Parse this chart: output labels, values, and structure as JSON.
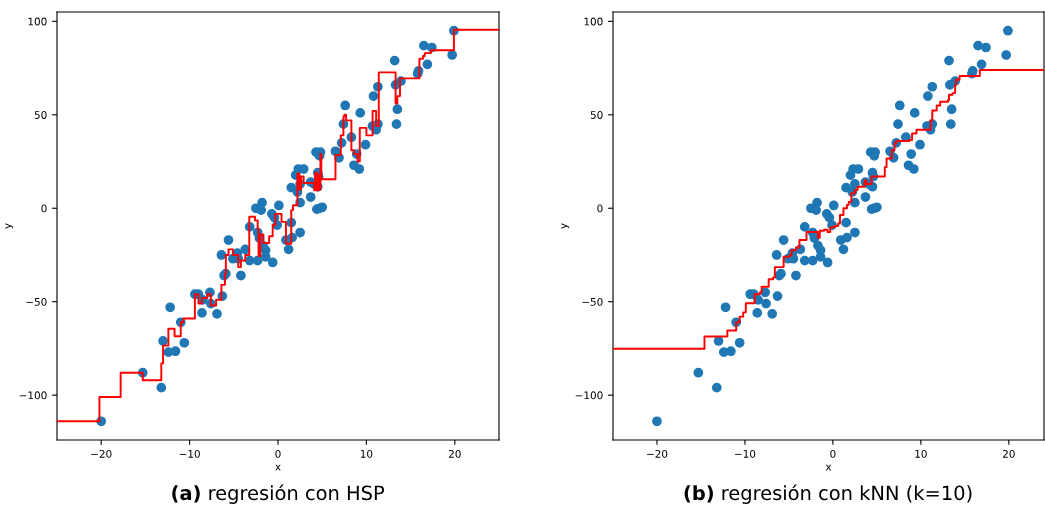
{
  "chart_data": [
    {
      "type": "scatter",
      "title": "(a) regresión con HSP",
      "xlabel": "x",
      "ylabel": "y",
      "xlim": [
        -25,
        25
      ],
      "ylim": [
        -124,
        105
      ],
      "xticks": [
        -20,
        -10,
        0,
        10,
        20
      ],
      "yticks": [
        -100,
        -50,
        0,
        50,
        100
      ],
      "series": [
        {
          "marker": "circle",
          "color": "#1f77b4",
          "x": [
            -20.0,
            -15.3,
            -13.2,
            -13.0,
            -12.2,
            -12.4,
            -11.6,
            -11.0,
            -10.6,
            -9.4,
            -9.0,
            -8.6,
            -8.5,
            -7.7,
            -7.6,
            -6.9,
            -6.3,
            -6.4,
            -6.1,
            -5.9,
            -5.6,
            -5.1,
            -4.6,
            -4.5,
            -4.2,
            -3.7,
            -3.2,
            -3.2,
            -2.5,
            -1.8,
            -1.9,
            -2.3,
            -2.1,
            -2.3,
            -1.7,
            -1.4,
            -1.4,
            -0.6,
            -0.7,
            -0.4,
            -0.1,
            0.1,
            0.9,
            1.2,
            1.5,
            1.6,
            2.5,
            1.5,
            2.0,
            2.3,
            2.9,
            2.5,
            2.2,
            2.5,
            3.7,
            3.7,
            4.3,
            4.8,
            4.7,
            4.5,
            4.6,
            4.1,
            4.5,
            4.4,
            4.7,
            5.0,
            6.5,
            6.9,
            7.2,
            7.4,
            7.6,
            8.3,
            8.9,
            8.6,
            9.2,
            9.3,
            9.9,
            10.7,
            11.1,
            11.3,
            10.8,
            11.3,
            13.2,
            13.3,
            13.5,
            13.4,
            13.9,
            15.8,
            15.9,
            16.9,
            16.5,
            17.4,
            19.7,
            19.9
          ],
          "values": [
            -114,
            -88,
            -96,
            -71,
            -53,
            -77,
            -76.5,
            -61,
            -72,
            -46,
            -46,
            -56,
            -49,
            -45,
            -51,
            -56.5,
            -47,
            -25,
            -36,
            -35,
            -17,
            -27,
            -24,
            -27,
            -36,
            -22,
            -28,
            -10,
            0,
            3,
            -1,
            -13,
            -16,
            -28,
            -20,
            -22.5,
            -26,
            -29,
            -3,
            -5,
            -9,
            1.5,
            -17,
            -22,
            -7.7,
            -15.7,
            -13,
            11,
            17.7,
            21,
            21,
            13,
            8.7,
            3,
            14,
            6,
            30,
            30,
            28,
            19,
            17,
            13,
            11.5,
            -0.5,
            0,
            0.5,
            30.5,
            27,
            35,
            45,
            55,
            38,
            29,
            23,
            21,
            51,
            34,
            44,
            42,
            45,
            60,
            65,
            79,
            66,
            53,
            45,
            68,
            72,
            73.5,
            77,
            87,
            86,
            82,
            95
          ]
        },
        {
          "type": "step",
          "color": "#ff0000",
          "x": [
            -25,
            -20.2,
            -17.8,
            -15.3,
            -13.2,
            -13.0,
            -12.4,
            -11.7,
            -11.0,
            -10.7,
            -9.4,
            -9.0,
            -8.6,
            -8.0,
            -7.6,
            -7.0,
            -6.4,
            -6.0,
            -5.9,
            -5.6,
            -5.1,
            -4.5,
            -4.2,
            -3.7,
            -3.25,
            -2.6,
            -2.3,
            -2.2,
            -2.0,
            -1.65,
            -1.0,
            -0.6,
            -0.3,
            0.4,
            0.9,
            1.5,
            1.7,
            2.2,
            2.4,
            2.6,
            2.9,
            4.1,
            4.2,
            4.4,
            4.6,
            4.7,
            4.8,
            4.9,
            6.5,
            7.1,
            7.4,
            7.5,
            7.7,
            8.3,
            8.6,
            9.0,
            9.25,
            10.0,
            10.7,
            11.1,
            11.4,
            13.3,
            13.5,
            13.8,
            16.0,
            16.4,
            16.6,
            17.3,
            19.9,
            25
          ],
          "values": [
            -114,
            -101,
            -88,
            -92,
            -83,
            -73.5,
            -64.5,
            -68.5,
            -61,
            -59,
            -46,
            -51,
            -48,
            -46,
            -52,
            -49,
            -41,
            -35,
            -25,
            -22,
            -25,
            -31.5,
            -28,
            -25,
            -4.6,
            -6.5,
            -11,
            -25.5,
            -14,
            -18.6,
            -15,
            -9,
            -3,
            -7.3,
            -19,
            -1,
            1.6,
            18.6,
            10,
            17,
            13.5,
            9.6,
            19,
            9.6,
            18,
            10,
            29,
            15.5,
            28.5,
            39,
            49,
            50,
            47,
            31,
            29,
            25,
            43,
            39,
            52,
            44,
            72.7,
            56,
            60,
            69.5,
            80,
            81.5,
            83,
            84.5,
            95.5,
            95.5
          ]
        }
      ]
    },
    {
      "type": "scatter",
      "title": "(b) regresión con kNN (k=10)",
      "xlabel": "x",
      "ylabel": "y",
      "xlim": [
        -25,
        24
      ],
      "ylim": [
        -124,
        105
      ],
      "xticks": [
        -20,
        -10,
        0,
        10,
        20
      ],
      "yticks": [
        -100,
        -50,
        0,
        50,
        100
      ],
      "series": [
        {
          "marker": "circle",
          "color": "#1f77b4",
          "x": [
            -20.0,
            -15.3,
            -13.2,
            -13.0,
            -12.2,
            -12.4,
            -11.6,
            -11.0,
            -10.6,
            -9.4,
            -9.0,
            -8.6,
            -8.5,
            -7.7,
            -7.6,
            -6.9,
            -6.3,
            -6.4,
            -6.1,
            -5.9,
            -5.6,
            -5.1,
            -4.6,
            -4.5,
            -4.2,
            -3.7,
            -3.2,
            -3.2,
            -2.5,
            -1.8,
            -1.9,
            -2.3,
            -2.1,
            -2.3,
            -1.7,
            -1.4,
            -1.4,
            -0.6,
            -0.7,
            -0.4,
            -0.1,
            0.1,
            0.9,
            1.2,
            1.5,
            1.6,
            2.5,
            1.5,
            2.0,
            2.3,
            2.9,
            2.5,
            2.2,
            2.5,
            3.7,
            3.7,
            4.3,
            4.8,
            4.7,
            4.5,
            4.6,
            4.1,
            4.5,
            4.4,
            4.7,
            5.0,
            6.5,
            6.9,
            7.2,
            7.4,
            7.6,
            8.3,
            8.9,
            8.6,
            9.2,
            9.3,
            9.9,
            10.7,
            11.1,
            11.3,
            10.8,
            11.3,
            13.2,
            13.3,
            13.5,
            13.4,
            13.9,
            15.8,
            15.9,
            16.9,
            16.5,
            17.4,
            19.7,
            19.9
          ],
          "values": [
            -114,
            -88,
            -96,
            -71,
            -53,
            -77,
            -76.5,
            -61,
            -72,
            -46,
            -46,
            -56,
            -49,
            -45,
            -51,
            -56.5,
            -47,
            -25,
            -36,
            -35,
            -17,
            -27,
            -24,
            -27,
            -36,
            -22,
            -28,
            -10,
            0,
            3,
            -1,
            -13,
            -16,
            -28,
            -20,
            -22.5,
            -26,
            -29,
            -3,
            -5,
            -9,
            1.5,
            -17,
            -22,
            -7.7,
            -15.7,
            -13,
            11,
            17.7,
            21,
            21,
            13,
            8.7,
            3,
            14,
            6,
            30,
            30,
            28,
            19,
            17,
            13,
            11.5,
            -0.5,
            0,
            0.5,
            30.5,
            27,
            35,
            45,
            55,
            38,
            29,
            23,
            21,
            51,
            34,
            44,
            42,
            45,
            60,
            65,
            79,
            66,
            53,
            45,
            68,
            72,
            73.5,
            77,
            87,
            86,
            82,
            95
          ]
        },
        {
          "type": "step",
          "color": "#ff0000",
          "x": [
            -25,
            -14.6,
            -12.0,
            -11.0,
            -10.6,
            -10.2,
            -9.9,
            -8.9,
            -8.3,
            -8.1,
            -7.3,
            -6.8,
            -6.6,
            -5.6,
            -4.9,
            -4.7,
            -4.2,
            -3.8,
            -3.0,
            -1.7,
            -1.5,
            -1.0,
            -0.6,
            -0.3,
            0.0,
            0.2,
            0.6,
            0.8,
            1.2,
            1.6,
            1.8,
            2.1,
            2.5,
            2.8,
            3.6,
            3.8,
            4.4,
            5.9,
            6.1,
            6.7,
            7.0,
            7.2,
            8.7,
            9.0,
            9.5,
            11.1,
            11.3,
            11.8,
            12.2,
            13.1,
            13.2,
            13.6,
            13.9,
            14.0,
            14.4,
            16.7,
            24
          ],
          "values": [
            -75.2,
            -68.6,
            -65.4,
            -61,
            -58,
            -55.7,
            -50.8,
            -46,
            -45,
            -42,
            -38,
            -37,
            -31.5,
            -26,
            -25,
            -22.5,
            -21,
            -17,
            -12.7,
            -15.8,
            -12,
            -11.5,
            -12.7,
            -10.3,
            -10,
            -9.5,
            -8.2,
            -3.6,
            0,
            1.8,
            3.4,
            8,
            9.8,
            11.5,
            15,
            13,
            17,
            22,
            26.6,
            31,
            34.6,
            36,
            36.5,
            40,
            42,
            47,
            52.3,
            55,
            57,
            58,
            60.7,
            61.6,
            66,
            68.7,
            70.8,
            74,
            74
          ]
        }
      ]
    }
  ]
}
